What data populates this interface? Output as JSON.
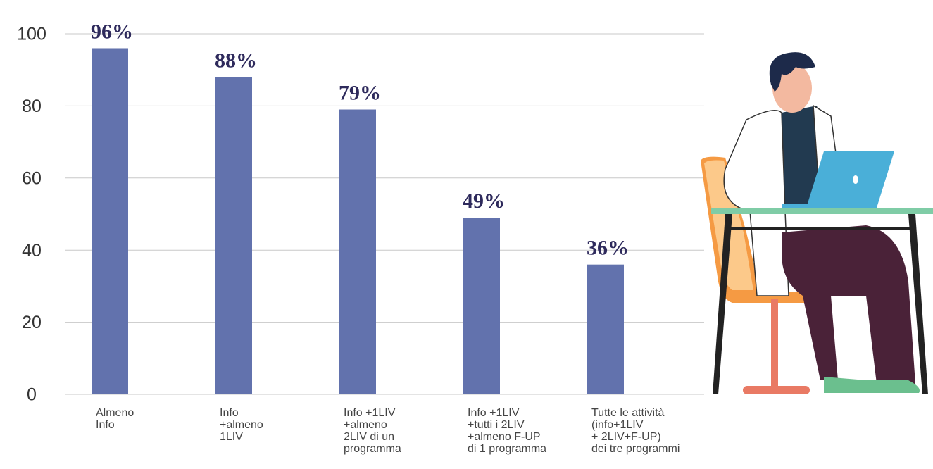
{
  "chart_data": {
    "type": "bar",
    "categories": [
      "Almeno\nInfo",
      "Info\n+almeno\n1LIV",
      "Info +1LIV\n+almeno\n2LIV di un\nprogramma",
      "Info +1LIV\n+tutti i 2LIV\n+almeno F-UP\ndi 1 programma",
      "Tutte le attività\n(info+1LIV\n+ 2LIV+F-UP)\ndei tre programmi"
    ],
    "values": [
      96,
      88,
      79,
      49,
      36
    ],
    "value_labels": [
      "96%",
      "88%",
      "79%",
      "49%",
      "36%"
    ],
    "color": "#6272ad",
    "ylim": [
      0,
      100
    ],
    "yticks": [
      0,
      20,
      40,
      60,
      80,
      100
    ],
    "grid": true
  }
}
